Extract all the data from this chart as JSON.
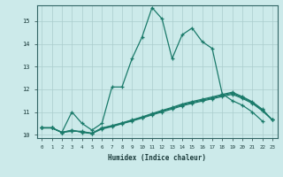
{
  "xlabel": "Humidex (Indice chaleur)",
  "background_color": "#cceaea",
  "grid_color": "#aacccc",
  "line_color": "#1a7a6a",
  "xlim": [
    -0.5,
    23.5
  ],
  "ylim": [
    9.85,
    15.7
  ],
  "yticks": [
    10,
    11,
    12,
    13,
    14,
    15
  ],
  "xticks": [
    0,
    1,
    2,
    3,
    4,
    5,
    6,
    7,
    8,
    9,
    10,
    11,
    12,
    13,
    14,
    15,
    16,
    17,
    18,
    19,
    20,
    21,
    22,
    23
  ],
  "series1_x": [
    0,
    1,
    2,
    3,
    4,
    5,
    6,
    7,
    8,
    9,
    10,
    11,
    12,
    13,
    14,
    15,
    16,
    17,
    18,
    19,
    20,
    21,
    22
  ],
  "series1_y": [
    10.3,
    10.3,
    10.1,
    11.0,
    10.5,
    10.2,
    10.5,
    12.1,
    12.1,
    13.35,
    14.3,
    15.6,
    15.1,
    13.35,
    14.4,
    14.7,
    14.1,
    13.8,
    11.8,
    11.5,
    11.3,
    11.0,
    10.6
  ],
  "series2_x": [
    0,
    1,
    2,
    3,
    4,
    5,
    6,
    7,
    8,
    9,
    10,
    11,
    12,
    13,
    14,
    15,
    16,
    17,
    18,
    19,
    20,
    21,
    22,
    23
  ],
  "series2_y": [
    10.3,
    10.3,
    10.1,
    10.15,
    10.15,
    10.05,
    10.25,
    10.35,
    10.48,
    10.6,
    10.73,
    10.87,
    11.0,
    11.13,
    11.27,
    11.38,
    11.48,
    11.58,
    11.68,
    11.78,
    11.6,
    11.38,
    11.05,
    10.65
  ],
  "series3_x": [
    0,
    1,
    2,
    3,
    4,
    5,
    6,
    7,
    8,
    9,
    10,
    11,
    12,
    13,
    14,
    15,
    16,
    17,
    18,
    19,
    20,
    21,
    22,
    23
  ],
  "series3_y": [
    10.3,
    10.3,
    10.1,
    10.2,
    10.1,
    10.05,
    10.3,
    10.4,
    10.52,
    10.65,
    10.78,
    10.93,
    11.07,
    11.2,
    11.35,
    11.46,
    11.56,
    11.66,
    11.77,
    11.87,
    11.68,
    11.45,
    11.12,
    10.65
  ],
  "series4_x": [
    0,
    1,
    2,
    3,
    4,
    5,
    6,
    7,
    8,
    9,
    10,
    11,
    12,
    13,
    14,
    15,
    16,
    17,
    18,
    19,
    20,
    21,
    22,
    23
  ],
  "series4_y": [
    10.3,
    10.3,
    10.1,
    10.18,
    10.12,
    10.07,
    10.28,
    10.38,
    10.5,
    10.63,
    10.76,
    10.9,
    11.04,
    11.17,
    11.31,
    11.42,
    11.52,
    11.62,
    11.73,
    11.83,
    11.64,
    11.42,
    11.08,
    10.65
  ]
}
